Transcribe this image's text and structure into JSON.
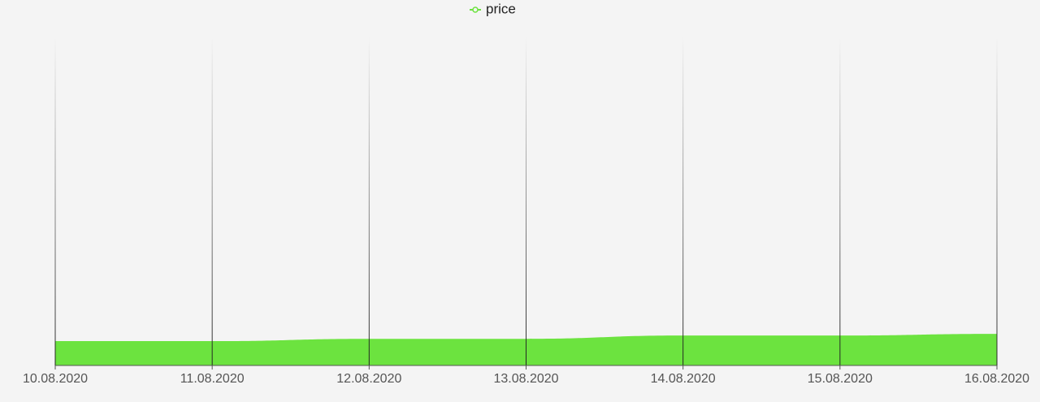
{
  "chart_data": {
    "type": "area",
    "x": [
      "10.08.2020",
      "11.08.2020",
      "12.08.2020",
      "13.08.2020",
      "14.08.2020",
      "15.08.2020",
      "16.08.2020"
    ],
    "series": [
      {
        "name": "price",
        "color": "#6ce33f",
        "values": [
          7.4,
          7.4,
          8.1,
          8.1,
          9.1,
          9.1,
          9.6
        ]
      }
    ],
    "ylim": [
      0,
      100
    ],
    "grid": true,
    "legend": "top"
  }
}
